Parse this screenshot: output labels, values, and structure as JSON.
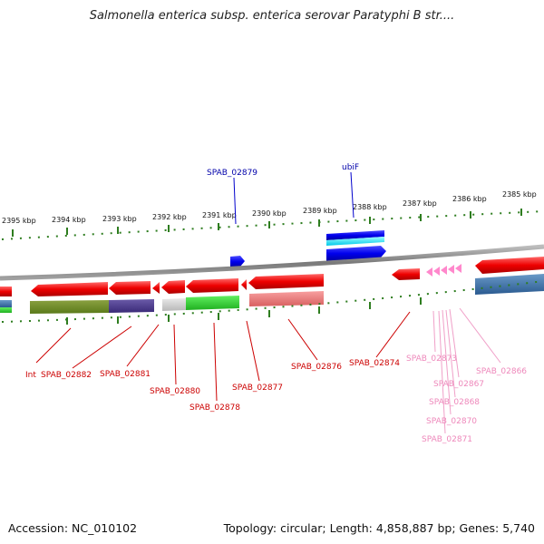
{
  "title": "Salmonella enterica subsp. enterica serovar Paratyphi B str....",
  "footer": {
    "accession": "Accession: NC_010102",
    "summary": "Topology: circular; Length: 4,858,887 bp; Genes: 5,740"
  },
  "colors": {
    "backbone": "#8a8a8a",
    "tick": "#2e7d1f",
    "forward_gene": "#ff0000",
    "reverse_gene_blue": "#0000ee",
    "pink_gene": "#ff88cc",
    "red_label": "#cc0000",
    "blue_label": "#0000aa",
    "pink_label": "#ee88bb"
  },
  "scale_labels": [
    "2395 kbp",
    "2394 kbp",
    "2393 kbp",
    "2392 kbp",
    "2391 kbp",
    "2390 kbp",
    "2389 kbp",
    "2388 kbp",
    "2387 kbp",
    "2386 kbp",
    "2385 kbp"
  ],
  "top_gene_labels": [
    "SPAB_02879",
    "ubiF"
  ],
  "bottom_gene_labels_red": [
    "Int",
    "SPAB_02882",
    "SPAB_02881",
    "SPAB_02880",
    "SPAB_02878",
    "SPAB_02877",
    "SPAB_02876",
    "SPAB_02874"
  ],
  "bottom_gene_labels_pink": [
    "SPAB_02873",
    "SPAB_02866",
    "SPAB_02867",
    "SPAB_02868",
    "SPAB_02870",
    "SPAB_02871"
  ]
}
